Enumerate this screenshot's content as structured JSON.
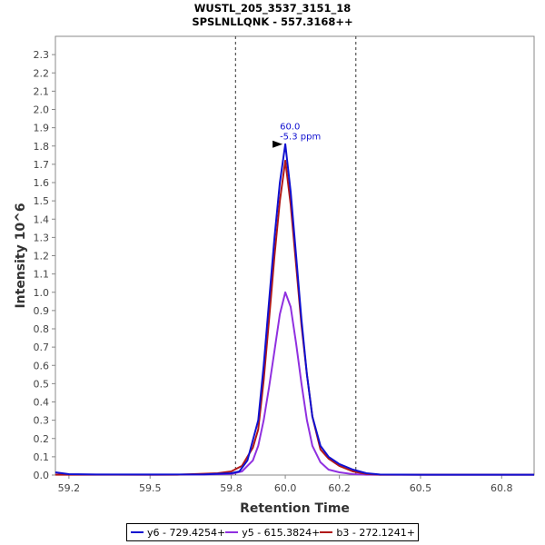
{
  "title": "WUSTL_205_3537_3151_18",
  "subtitle": "SPSLNLLQNK - 557.3168++",
  "chart_data": {
    "type": "line",
    "title": "WUSTL_205_3537_3151_18",
    "subtitle": "SPSLNLLQNK - 557.3168++",
    "xlabel": "Retention Time",
    "ylabel": "Intensity 10^6",
    "xlim": [
      59.15,
      60.92
    ],
    "ylim": [
      0,
      2.4
    ],
    "x_ticks": [
      "59.2",
      "59.5",
      "59.8",
      "60.0",
      "60.2",
      "60.5",
      "60.8"
    ],
    "x_tick_values": [
      59.2,
      59.5,
      59.8,
      60.0,
      60.2,
      60.5,
      60.8
    ],
    "y_ticks": [
      "0.0",
      "0.1",
      "0.2",
      "0.3",
      "0.4",
      "0.5",
      "0.6",
      "0.7",
      "0.8",
      "0.9",
      "1.0",
      "1.1",
      "1.2",
      "1.3",
      "1.4",
      "1.5",
      "1.6",
      "1.7",
      "1.8",
      "1.9",
      "2.0",
      "2.1",
      "2.2",
      "2.3"
    ],
    "y_tick_values": [
      0.0,
      0.1,
      0.2,
      0.3,
      0.4,
      0.5,
      0.6,
      0.7,
      0.8,
      0.9,
      1.0,
      1.1,
      1.2,
      1.3,
      1.4,
      1.5,
      1.6,
      1.7,
      1.8,
      1.9,
      2.0,
      2.1,
      2.2,
      2.3
    ],
    "vlines": [
      59.816,
      60.261
    ],
    "annotation": {
      "x": 60.0,
      "y": 1.81,
      "line1": "60.0",
      "line2": "-5.3 ppm"
    },
    "legend_position": "bottom",
    "series": [
      {
        "name": "y6 - 729.4254+",
        "color": "#1010d0",
        "points": [
          [
            59.15,
            0.015
          ],
          [
            59.2,
            0.005
          ],
          [
            59.3,
            0.003
          ],
          [
            59.5,
            0.003
          ],
          [
            59.7,
            0.004
          ],
          [
            59.8,
            0.01
          ],
          [
            59.83,
            0.02
          ],
          [
            59.86,
            0.08
          ],
          [
            59.9,
            0.3
          ],
          [
            59.92,
            0.6
          ],
          [
            59.94,
            0.95
          ],
          [
            59.96,
            1.3
          ],
          [
            59.98,
            1.6
          ],
          [
            60.0,
            1.81
          ],
          [
            60.02,
            1.55
          ],
          [
            60.04,
            1.2
          ],
          [
            60.06,
            0.85
          ],
          [
            60.08,
            0.55
          ],
          [
            60.1,
            0.32
          ],
          [
            60.13,
            0.16
          ],
          [
            60.16,
            0.1
          ],
          [
            60.2,
            0.06
          ],
          [
            60.25,
            0.03
          ],
          [
            60.3,
            0.01
          ],
          [
            60.35,
            0.003
          ],
          [
            60.5,
            0.002
          ],
          [
            60.92,
            0.002
          ]
        ]
      },
      {
        "name": "y5 - 615.3824+",
        "color": "#9030e0",
        "points": [
          [
            59.15,
            0.003
          ],
          [
            59.5,
            0.002
          ],
          [
            59.7,
            0.003
          ],
          [
            59.8,
            0.006
          ],
          [
            59.84,
            0.02
          ],
          [
            59.88,
            0.08
          ],
          [
            59.9,
            0.16
          ],
          [
            59.92,
            0.3
          ],
          [
            59.94,
            0.48
          ],
          [
            59.96,
            0.68
          ],
          [
            59.98,
            0.88
          ],
          [
            60.0,
            1.0
          ],
          [
            60.02,
            0.92
          ],
          [
            60.04,
            0.72
          ],
          [
            60.06,
            0.5
          ],
          [
            60.08,
            0.3
          ],
          [
            60.1,
            0.16
          ],
          [
            60.13,
            0.07
          ],
          [
            60.16,
            0.03
          ],
          [
            60.2,
            0.015
          ],
          [
            60.25,
            0.005
          ],
          [
            60.3,
            0.002
          ],
          [
            60.92,
            0.002
          ]
        ]
      },
      {
        "name": "b3 - 272.1241+",
        "color": "#b01818",
        "points": [
          [
            59.15,
            0.002
          ],
          [
            59.6,
            0.002
          ],
          [
            59.75,
            0.01
          ],
          [
            59.8,
            0.02
          ],
          [
            59.84,
            0.05
          ],
          [
            59.88,
            0.15
          ],
          [
            59.9,
            0.25
          ],
          [
            59.92,
            0.52
          ],
          [
            59.94,
            0.85
          ],
          [
            59.96,
            1.2
          ],
          [
            59.98,
            1.5
          ],
          [
            60.0,
            1.72
          ],
          [
            60.02,
            1.48
          ],
          [
            60.04,
            1.15
          ],
          [
            60.06,
            0.82
          ],
          [
            60.08,
            0.55
          ],
          [
            60.1,
            0.32
          ],
          [
            60.13,
            0.14
          ],
          [
            60.16,
            0.09
          ],
          [
            60.2,
            0.05
          ],
          [
            60.25,
            0.02
          ],
          [
            60.3,
            0.006
          ],
          [
            60.35,
            0.002
          ],
          [
            60.92,
            0.002
          ]
        ]
      }
    ]
  }
}
